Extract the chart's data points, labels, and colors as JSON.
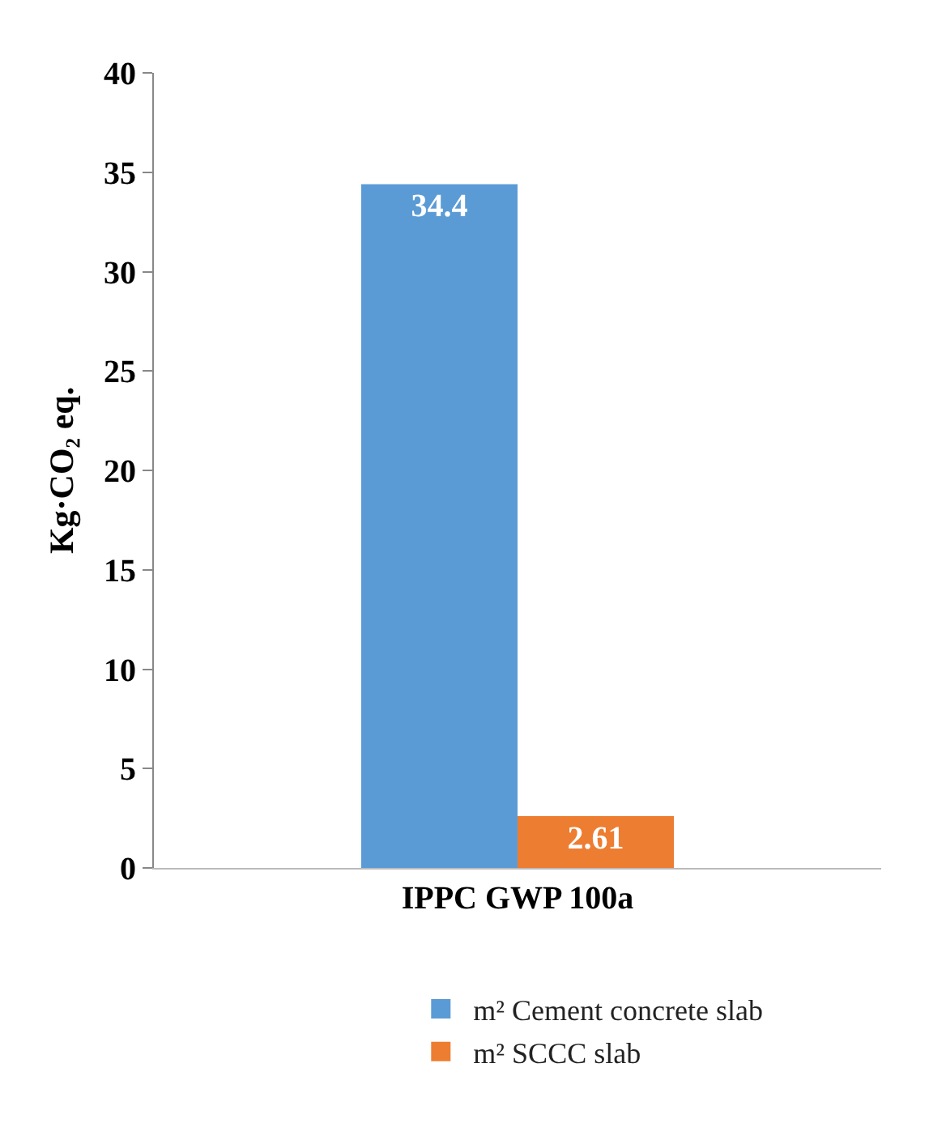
{
  "chart_data": {
    "type": "bar",
    "ylabel": "Kg·CO₂ eq.",
    "categories": [
      "IPPC GWP 100a"
    ],
    "series": [
      {
        "name": "m² Cement concrete slab",
        "color": "#5b9bd5",
        "values": [
          34.4
        ]
      },
      {
        "name": "m² SCCC slab",
        "color": "#ed7d31",
        "values": [
          2.61
        ]
      }
    ],
    "ylim": [
      0,
      40
    ],
    "yticks": [
      0,
      5,
      10,
      15,
      20,
      25,
      30,
      35,
      40
    ],
    "grid": false,
    "legend": "bottom",
    "data_labels": true
  }
}
